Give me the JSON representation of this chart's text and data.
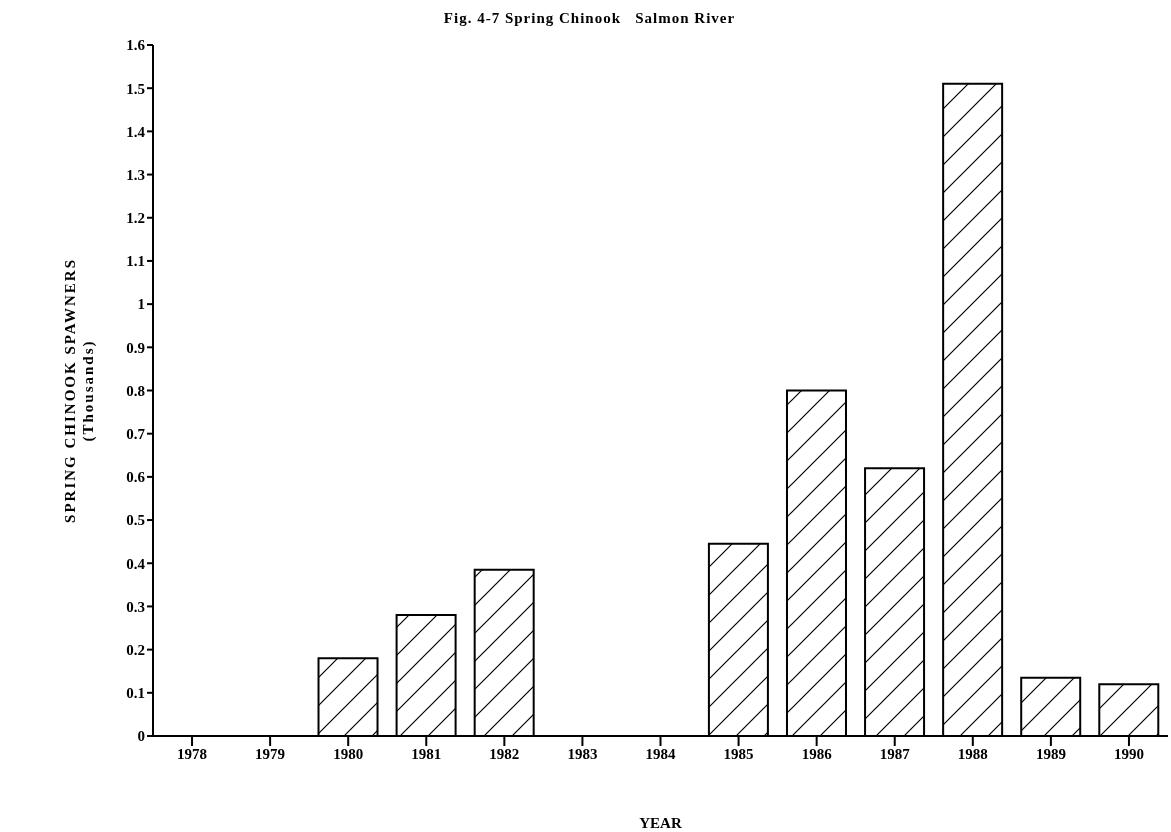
{
  "chart_data": {
    "type": "bar",
    "title": "Fig. 4-7 Spring Chinook   Salmon River",
    "xlabel": "YEAR",
    "ylabel": "SPRING CHINOOK SPAWNERS\n(Thousands)",
    "categories": [
      "1978",
      "1979",
      "1980",
      "1981",
      "1982",
      "1983",
      "1984",
      "1985",
      "1986",
      "1987",
      "1988",
      "1989",
      "1990"
    ],
    "values": [
      0,
      0,
      0.18,
      0.28,
      0.385,
      0,
      0,
      0.445,
      0.8,
      0.62,
      1.51,
      0.135,
      0.12
    ],
    "color": "#000000",
    "ylim": [
      0,
      1.6
    ],
    "yticks": [
      0,
      0.1,
      0.2,
      0.3,
      0.4,
      0.5,
      0.6,
      0.7,
      0.8,
      0.9,
      1,
      1.1,
      1.2,
      1.3,
      1.4,
      1.5,
      1.6
    ],
    "grid": false
  }
}
